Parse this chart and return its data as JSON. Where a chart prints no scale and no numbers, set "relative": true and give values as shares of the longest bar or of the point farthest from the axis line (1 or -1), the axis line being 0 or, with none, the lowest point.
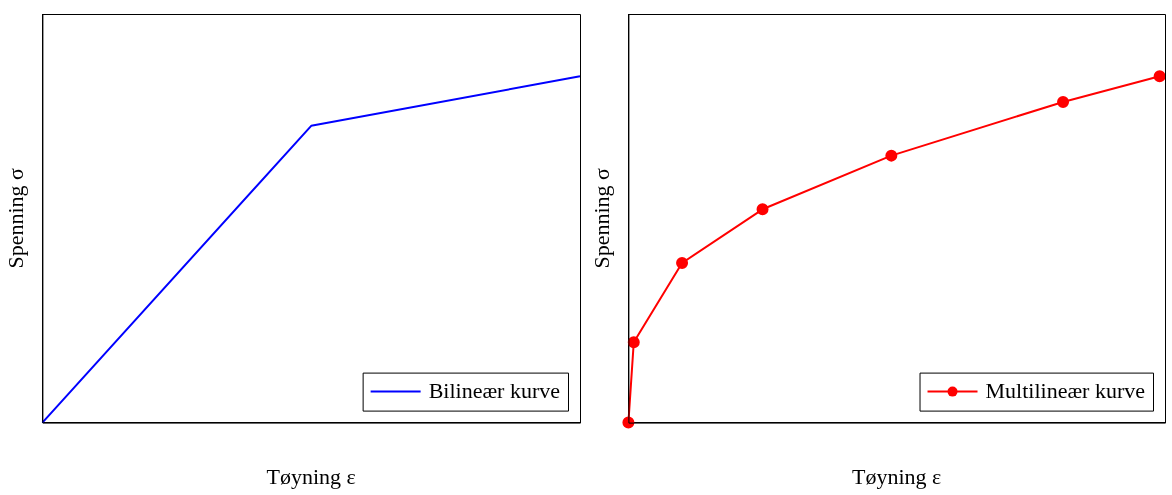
{
  "chart_data": [
    {
      "type": "line",
      "xlabel": "Tøyning ε",
      "ylabel": "Spenning σ",
      "relative": true,
      "legend": "bottom right",
      "categories": [
        null,
        null,
        null
      ],
      "series": [
        {
          "name": "Bilineær kurve",
          "color": "#0000ff",
          "marker": "none",
          "values": [
            0,
            0.857,
            1
          ]
        }
      ]
    },
    {
      "type": "line",
      "xlabel": "Tøyning ε",
      "ylabel": "Spenning σ",
      "relative": true,
      "legend": "bottom right",
      "categories": [
        null,
        null,
        null,
        null,
        null,
        null,
        null,
        null,
        null,
        null,
        null,
        null,
        null,
        null,
        null,
        null,
        null,
        null,
        null,
        null,
        null,
        null,
        null,
        null,
        null,
        null,
        null,
        null,
        null,
        null,
        null,
        null,
        null,
        null,
        null,
        null,
        null,
        null,
        null,
        null,
        null,
        null,
        null,
        null,
        null,
        null,
        null,
        null,
        null,
        null,
        null,
        null,
        null,
        null,
        null,
        null,
        null,
        null,
        null,
        null,
        null,
        null,
        null,
        null,
        null,
        null,
        null,
        null,
        null,
        null,
        null,
        null,
        null,
        null,
        null,
        null,
        null,
        null,
        null,
        null,
        null,
        null,
        null,
        null,
        null,
        null,
        null,
        null,
        null,
        null,
        null,
        null,
        null,
        null,
        null,
        null,
        null,
        null,
        null,
        null,
        null
      ],
      "series": [
        {
          "name": "Multilineær kurve",
          "color": "#ff0000",
          "marker": "circle",
          "values": [
            0,
            0.232,
            null,
            null,
            null,
            null,
            null,
            null,
            null,
            null,
            0.461,
            null,
            null,
            null,
            null,
            null,
            null,
            null,
            null,
            null,
            null,
            null,
            null,
            null,
            null,
            0.616,
            null,
            null,
            null,
            null,
            null,
            null,
            null,
            null,
            null,
            null,
            null,
            null,
            null,
            null,
            null,
            null,
            null,
            null,
            null,
            null,
            null,
            null,
            null,
            0.771,
            null,
            null,
            null,
            null,
            null,
            null,
            null,
            null,
            null,
            null,
            null,
            null,
            null,
            null,
            null,
            null,
            null,
            null,
            null,
            null,
            null,
            null,
            null,
            null,
            null,
            null,
            null,
            null,
            null,
            null,
            null,
            0.926,
            null,
            null,
            null,
            null,
            null,
            null,
            null,
            null,
            null,
            null,
            null,
            null,
            null,
            null,
            null,
            null,
            null,
            1,
            null
          ]
        }
      ]
    }
  ]
}
